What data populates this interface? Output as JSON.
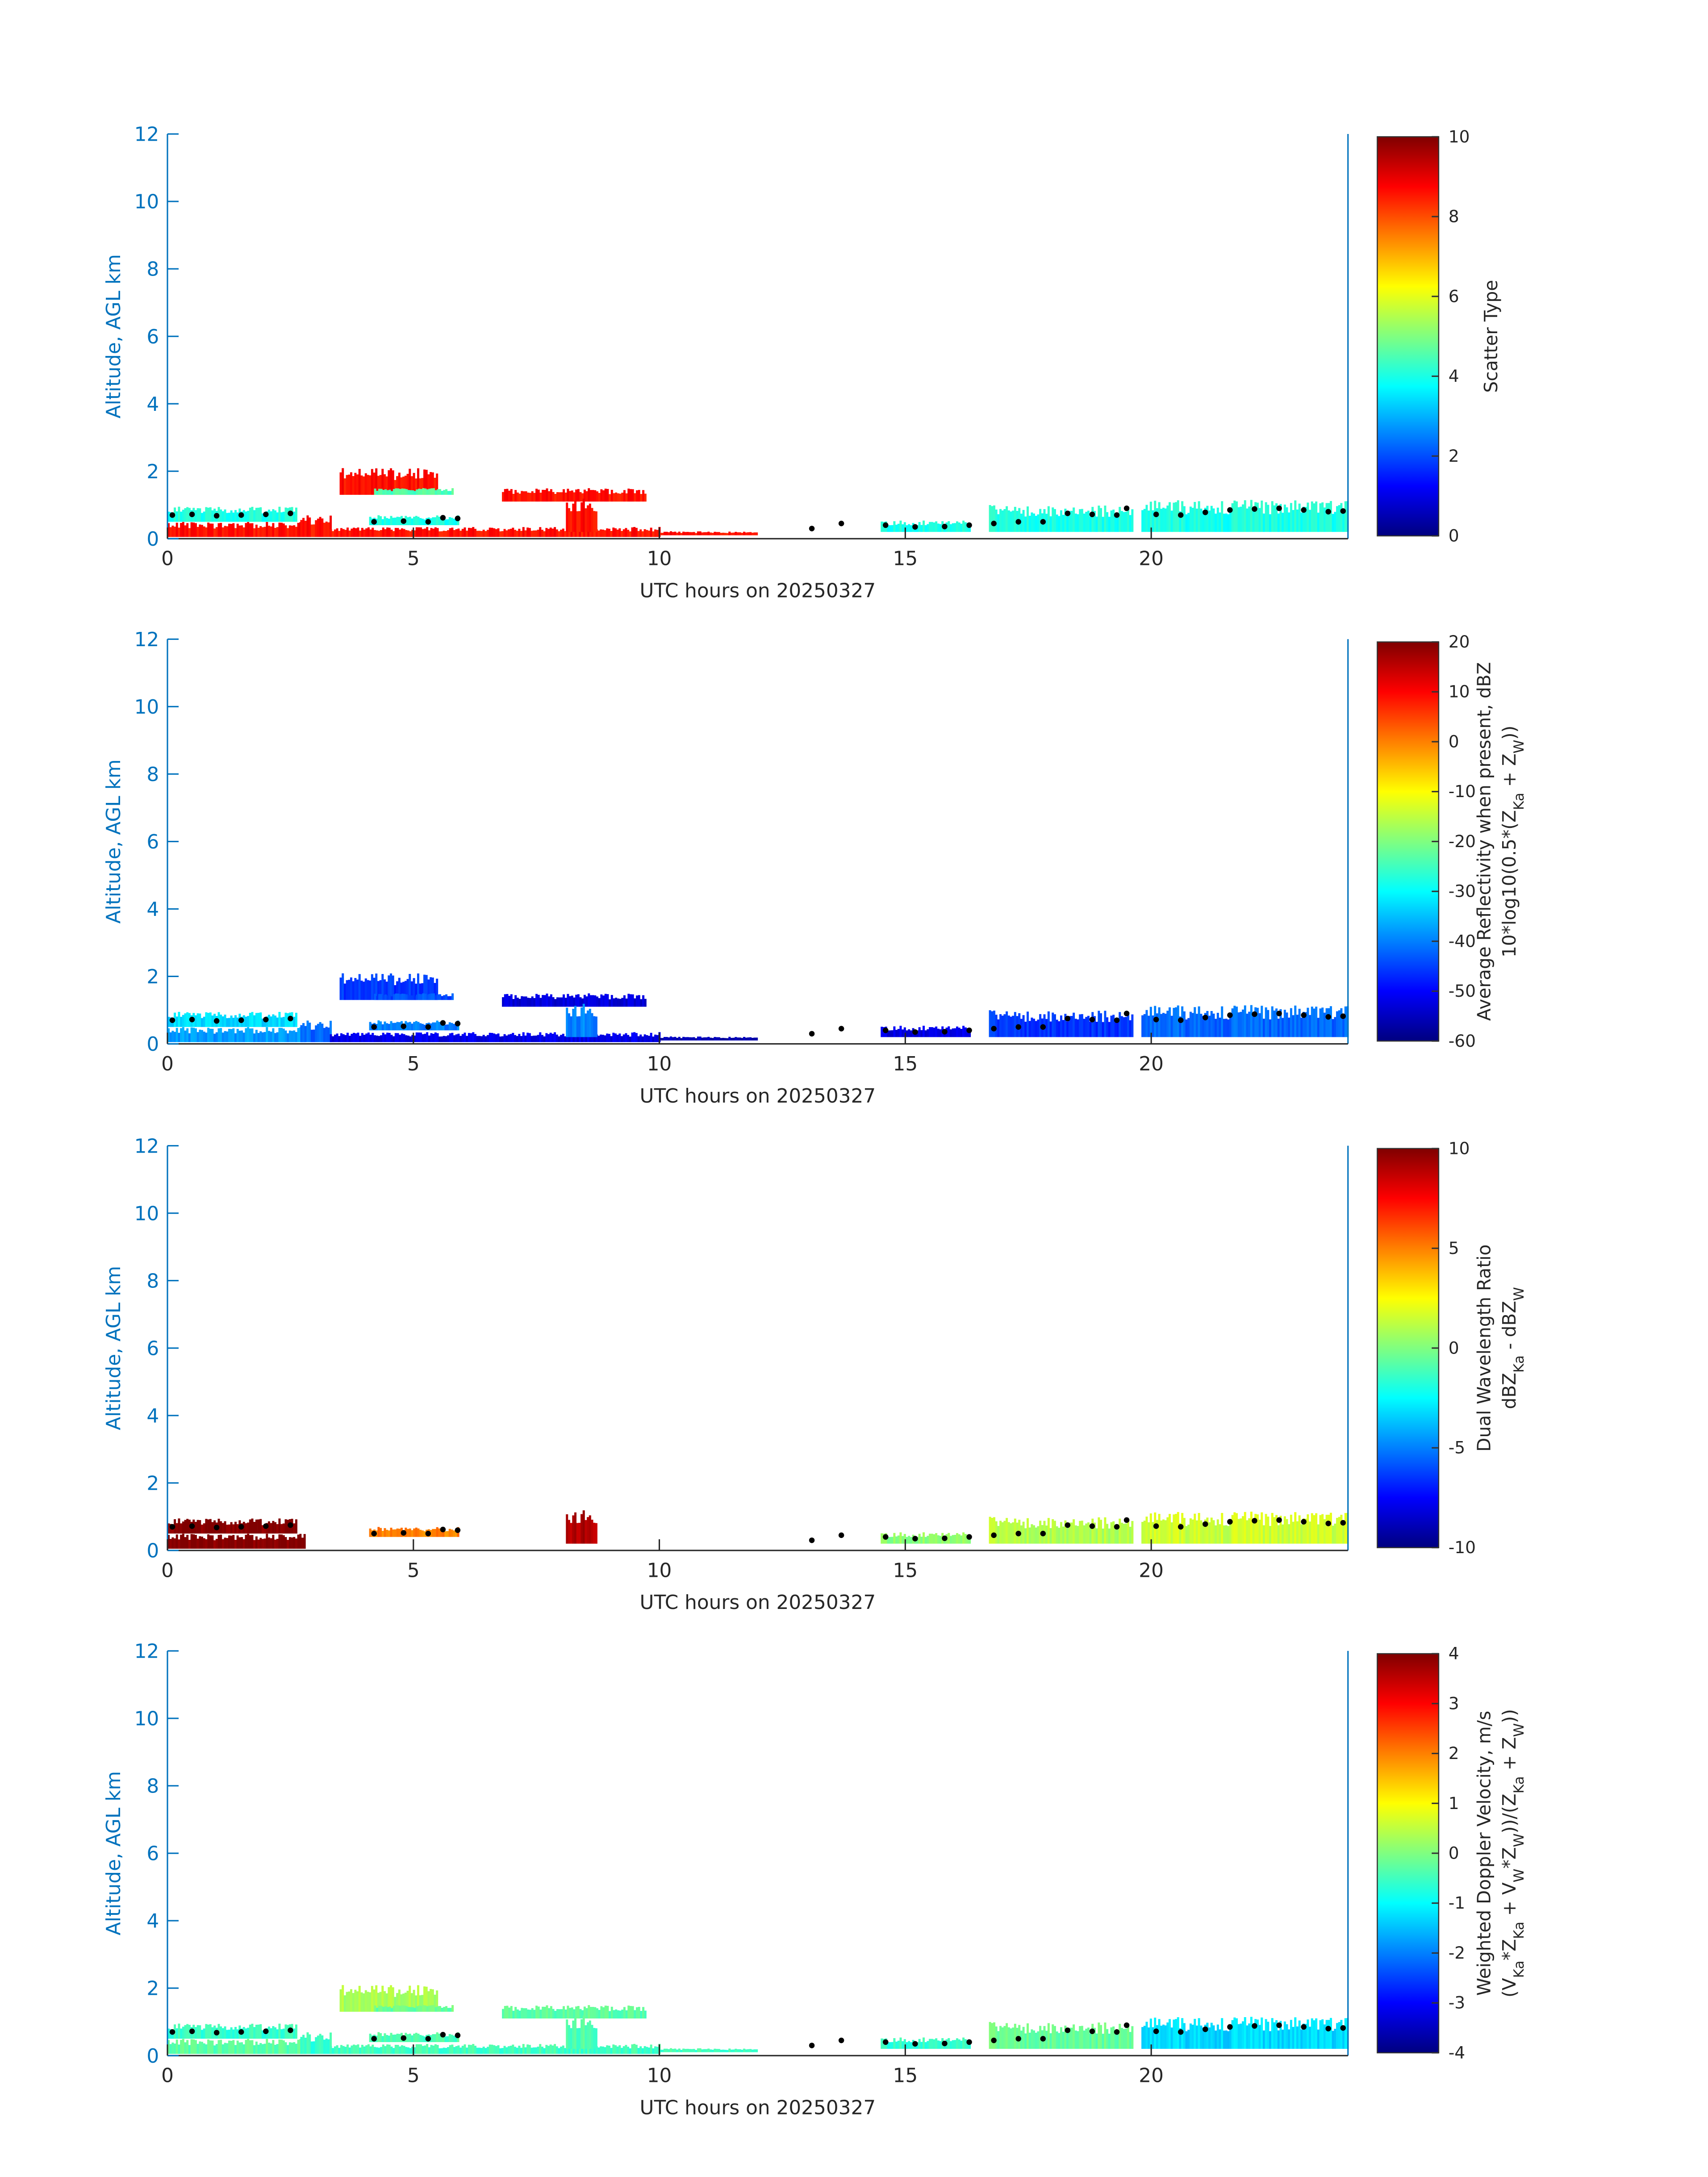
{
  "chart_data": [
    {
      "type": "heatmap",
      "xlabel": "UTC hours on 20250327",
      "ylabel": "Altitude, AGL km",
      "xlim": [
        0,
        24
      ],
      "ylim": [
        0,
        12
      ],
      "xticks": [
        0,
        5,
        10,
        15,
        20
      ],
      "yticks": [
        0,
        2,
        4,
        6,
        8,
        10,
        12
      ],
      "colormap": "jet",
      "clim": [
        0,
        10
      ],
      "cbticks": [
        0,
        2,
        4,
        6,
        8,
        10
      ],
      "cblabel": [
        [
          "Scatter Type"
        ]
      ],
      "field": "scatter"
    },
    {
      "type": "heatmap",
      "xlabel": "UTC hours on 20250327",
      "ylabel": "Altitude, AGL km",
      "xlim": [
        0,
        24
      ],
      "ylim": [
        0,
        12
      ],
      "xticks": [
        0,
        5,
        10,
        15,
        20
      ],
      "yticks": [
        0,
        2,
        4,
        6,
        8,
        10,
        12
      ],
      "colormap": "jet",
      "clim": [
        -60,
        20
      ],
      "cbticks": [
        -60,
        -50,
        -40,
        -30,
        -20,
        -10,
        0,
        10,
        20
      ],
      "cblabel": [
        [
          "Average Reflectivity when present, dBZ"
        ],
        [
          "10*log10(0.5*(Z",
          "Ka",
          " + Z",
          "W",
          "))"
        ]
      ],
      "field": "refl"
    },
    {
      "type": "heatmap",
      "xlabel": "UTC hours on 20250327",
      "ylabel": "Altitude, AGL km",
      "xlim": [
        0,
        24
      ],
      "ylim": [
        0,
        12
      ],
      "xticks": [
        0,
        5,
        10,
        15,
        20
      ],
      "yticks": [
        0,
        2,
        4,
        6,
        8,
        10,
        12
      ],
      "colormap": "jet",
      "clim": [
        -10,
        10
      ],
      "cbticks": [
        -10,
        -5,
        0,
        5,
        10
      ],
      "cblabel": [
        [
          "Dual Wavelength Ratio"
        ],
        [
          "dBZ",
          "Ka",
          " - dBZ",
          "W"
        ]
      ],
      "field": "dwr"
    },
    {
      "type": "heatmap",
      "xlabel": "UTC hours on 20250327",
      "ylabel": "Altitude, AGL km",
      "xlim": [
        0,
        24
      ],
      "ylim": [
        0,
        12
      ],
      "xticks": [
        0,
        5,
        10,
        15,
        20
      ],
      "yticks": [
        0,
        2,
        4,
        6,
        8,
        10,
        12
      ],
      "colormap": "jet",
      "clim": [
        -4,
        4
      ],
      "cbticks": [
        -4,
        -3,
        -2,
        -1,
        0,
        1,
        2,
        3,
        4
      ],
      "cblabel": [
        [
          "Weighted Doppler Velocity, m/s"
        ],
        [
          "(V",
          "Ka",
          "*Z",
          "Ka",
          " + V",
          "W",
          "*Z",
          "W",
          "))/(Z",
          "Ka",
          " + Z",
          "W",
          "))"
        ]
      ],
      "field": "vel"
    }
  ],
  "echo_regions": [
    {
      "t": [
        0.0,
        2.6
      ],
      "z": [
        0.5,
        0.95
      ],
      "scatter": 4,
      "refl": -33,
      "dwr": 10,
      "vel": -0.6
    },
    {
      "t": [
        0.0,
        2.8
      ],
      "z": [
        0.05,
        0.5
      ],
      "scatter": 8.6,
      "refl": -38,
      "dwr": 10,
      "vel": -0.3
    },
    {
      "t": [
        2.7,
        3.3
      ],
      "z": [
        0.05,
        0.7
      ],
      "scatter": 8.6,
      "refl": -42,
      "dwr": null,
      "vel": -0.6
    },
    {
      "t": [
        3.5,
        5.5
      ],
      "z": [
        1.3,
        2.1
      ],
      "scatter": 8.6,
      "refl": -46,
      "dwr": null,
      "vel": 0.3
    },
    {
      "t": [
        4.2,
        5.8
      ],
      "z": [
        1.3,
        1.5
      ],
      "scatter": 4.5,
      "refl": -44,
      "dwr": null,
      "vel": -0.2
    },
    {
      "t": [
        3.3,
        10.0
      ],
      "z": [
        0.05,
        0.35
      ],
      "scatter": 8.6,
      "refl": -52,
      "dwr": null,
      "vel": -0.5
    },
    {
      "t": [
        4.1,
        5.9
      ],
      "z": [
        0.4,
        0.7
      ],
      "scatter": 4,
      "refl": -40,
      "dwr": 5,
      "vel": -0.4
    },
    {
      "t": [
        6.8,
        9.7
      ],
      "z": [
        1.1,
        1.5
      ],
      "scatter": 8.6,
      "refl": -53,
      "dwr": null,
      "vel": -0.3
    },
    {
      "t": [
        8.1,
        8.7
      ],
      "z": [
        0.2,
        1.2
      ],
      "scatter": 8.6,
      "refl": -40,
      "dwr": 9,
      "vel": -0.4
    },
    {
      "t": [
        10.0,
        12.0
      ],
      "z": [
        0.1,
        0.22
      ],
      "scatter": 8.6,
      "refl": -56,
      "dwr": null,
      "vel": -0.5
    },
    {
      "t": [
        14.5,
        16.3
      ],
      "z": [
        0.2,
        0.55
      ],
      "scatter": 4,
      "refl": -52,
      "dwr": 0.3,
      "vel": -0.6
    },
    {
      "t": [
        16.7,
        19.6
      ],
      "z": [
        0.2,
        1.0
      ],
      "scatter": 4,
      "refl": -46,
      "dwr": 1,
      "vel": -0.2
    },
    {
      "t": [
        19.8,
        24.0
      ],
      "z": [
        0.2,
        1.15
      ],
      "scatter": 4,
      "refl": -42,
      "dwr": 1.5,
      "vel": -1.3
    }
  ],
  "cloud_base_points": [
    [
      0.1,
      0.7
    ],
    [
      0.5,
      0.72
    ],
    [
      1.0,
      0.68
    ],
    [
      1.5,
      0.7
    ],
    [
      2.0,
      0.72
    ],
    [
      2.5,
      0.75
    ],
    [
      4.2,
      0.5
    ],
    [
      4.8,
      0.52
    ],
    [
      5.3,
      0.5
    ],
    [
      5.6,
      0.62
    ],
    [
      5.9,
      0.6
    ],
    [
      13.1,
      0.3
    ],
    [
      13.7,
      0.45
    ],
    [
      14.6,
      0.4
    ],
    [
      15.2,
      0.35
    ],
    [
      15.8,
      0.36
    ],
    [
      16.3,
      0.4
    ],
    [
      16.8,
      0.45
    ],
    [
      17.3,
      0.5
    ],
    [
      17.8,
      0.5
    ],
    [
      18.3,
      0.75
    ],
    [
      18.8,
      0.72
    ],
    [
      19.3,
      0.7
    ],
    [
      19.5,
      0.9
    ],
    [
      20.1,
      0.72
    ],
    [
      20.6,
      0.7
    ],
    [
      21.1,
      0.78
    ],
    [
      21.6,
      0.85
    ],
    [
      22.1,
      0.88
    ],
    [
      22.6,
      0.9
    ],
    [
      23.1,
      0.85
    ],
    [
      23.6,
      0.8
    ],
    [
      23.9,
      0.82
    ]
  ],
  "colors": {
    "axis_blue": "#0072BD",
    "text": "#262626",
    "cloud_base": "#000000"
  }
}
